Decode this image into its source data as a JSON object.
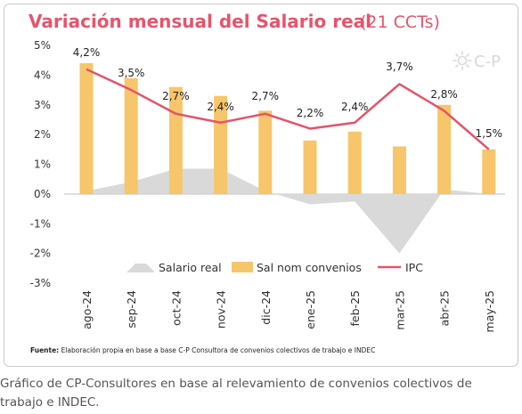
{
  "title_main": "Variación mensual del Salario real",
  "title_suffix": "(21 CCTs)",
  "logo_text": "C-P",
  "source_label": "Fuente:",
  "source_text": " Elaboración propia en base a base C-P Consultora de convenios colectivos de trabajo e INDEC",
  "caption": "Gráfico de CP-Consultores en base al relevamiento de convenios colectivos de trabajo e INDEC.",
  "colors": {
    "title": "#e8546b",
    "area": "#d9d9d9",
    "bar": "#f7c56a",
    "line": "#e4546b",
    "axis_text": "#333333",
    "border": "#bfbfbf"
  },
  "chart_data": {
    "type": "bar",
    "title": "Variación mensual del Salario real (21 CCTs)",
    "categories": [
      "ago-24",
      "sep-24",
      "oct-24",
      "nov-24",
      "dic-24",
      "ene-25",
      "feb-25",
      "mar-25",
      "abr-25",
      "may-25"
    ],
    "series": [
      {
        "name": "Salario real",
        "kind": "area",
        "values": [
          0.1,
          0.4,
          0.85,
          0.85,
          0.1,
          -0.35,
          -0.25,
          -2.0,
          0.15,
          0.0
        ]
      },
      {
        "name": "Sal nom convenios",
        "kind": "bar",
        "values": [
          4.4,
          3.9,
          3.6,
          3.3,
          2.8,
          1.8,
          2.1,
          1.6,
          3.0,
          1.5
        ]
      },
      {
        "name": "IPC",
        "kind": "line",
        "values": [
          4.2,
          3.5,
          2.7,
          2.4,
          2.7,
          2.2,
          2.4,
          3.7,
          2.8,
          1.5
        ]
      }
    ],
    "data_labels": [
      "4,2%",
      "3,5%",
      "2,7%",
      "2,4%",
      "2,7%",
      "2,2%",
      "2,4%",
      "3,7%",
      "2,8%",
      "1,5%"
    ],
    "y_ticks": [
      "5%",
      "4%",
      "3%",
      "2%",
      "1%",
      "0%",
      "-1%",
      "-2%",
      "-3%"
    ],
    "ylim": [
      -3,
      5
    ],
    "legend": [
      "Salario real",
      "Sal nom convenios",
      "IPC"
    ],
    "legend_position": "lower-center"
  }
}
